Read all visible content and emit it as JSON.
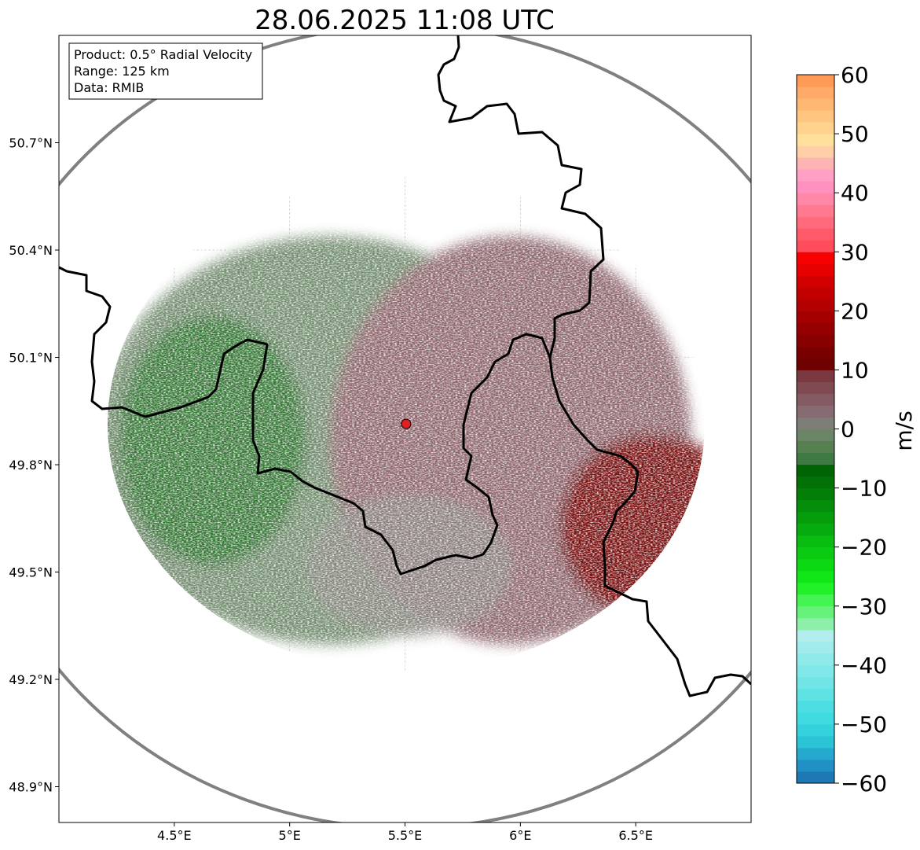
{
  "chart_data": {
    "type": "heatmap",
    "title": "28.06.2025 11:08 UTC",
    "info_box": [
      "Product: 0.5° Radial Velocity",
      "Range: 125 km",
      "Data: RMIB"
    ],
    "x_ticks": [
      {
        "value": 4.5,
        "label": "4.5°E"
      },
      {
        "value": 5.0,
        "label": "5°E"
      },
      {
        "value": 5.5,
        "label": "5.5°E"
      },
      {
        "value": 6.0,
        "label": "6°E"
      },
      {
        "value": 6.5,
        "label": "6.5°E"
      }
    ],
    "y_ticks": [
      {
        "value": 48.9,
        "label": "48.9°N"
      },
      {
        "value": 49.2,
        "label": "49.2°N"
      },
      {
        "value": 49.5,
        "label": "49.5°N"
      },
      {
        "value": 49.8,
        "label": "49.8°N"
      },
      {
        "value": 50.1,
        "label": "50.1°N"
      },
      {
        "value": 50.4,
        "label": "50.4°N"
      },
      {
        "value": 50.7,
        "label": "50.7°N"
      }
    ],
    "xlim": [
      4.0,
      7.0
    ],
    "ylim": [
      48.8,
      51.0
    ],
    "grid": true,
    "radar_site": {
      "lon": 5.505,
      "lat": 49.914
    },
    "range_km": 125,
    "colorbar": {
      "label": "m/s",
      "min": -60,
      "max": 60,
      "ticks": [
        -60,
        -50,
        -40,
        -30,
        -20,
        -10,
        0,
        10,
        20,
        30,
        40,
        50,
        60
      ],
      "tick_labels": [
        "−60",
        "−50",
        "−40",
        "−30",
        "−20",
        "−10",
        "0",
        "10",
        "20",
        "30",
        "40",
        "50",
        "60"
      ],
      "bands": [
        {
          "from": -60,
          "to": -58,
          "color": "#1f77b4"
        },
        {
          "from": -58,
          "to": -56,
          "color": "#2190c4"
        },
        {
          "from": -56,
          "to": -54,
          "color": "#25a9cf"
        },
        {
          "from": -54,
          "to": -52,
          "color": "#2bc3d6"
        },
        {
          "from": -52,
          "to": -50,
          "color": "#33d2dc"
        },
        {
          "from": -50,
          "to": -48,
          "color": "#3fdbe0"
        },
        {
          "from": -48,
          "to": -46,
          "color": "#4cdee2"
        },
        {
          "from": -46,
          "to": -44,
          "color": "#5ee2e4"
        },
        {
          "from": -44,
          "to": -42,
          "color": "#6fe5e6"
        },
        {
          "from": -42,
          "to": -40,
          "color": "#80e8e8"
        },
        {
          "from": -40,
          "to": -38,
          "color": "#90eaea"
        },
        {
          "from": -38,
          "to": -36,
          "color": "#a0ecec"
        },
        {
          "from": -36,
          "to": -34,
          "color": "#b2eeee"
        },
        {
          "from": -34,
          "to": -32,
          "color": "#8cf0a8"
        },
        {
          "from": -32,
          "to": -30,
          "color": "#66f27a"
        },
        {
          "from": -30,
          "to": -28,
          "color": "#44f452"
        },
        {
          "from": -28,
          "to": -26,
          "color": "#22f028"
        },
        {
          "from": -26,
          "to": -24,
          "color": "#10e618"
        },
        {
          "from": -24,
          "to": -22,
          "color": "#0cd914"
        },
        {
          "from": -22,
          "to": -20,
          "color": "#0acb12"
        },
        {
          "from": -20,
          "to": -18,
          "color": "#08bc10"
        },
        {
          "from": -18,
          "to": -16,
          "color": "#06ac0e"
        },
        {
          "from": -16,
          "to": -14,
          "color": "#059d0c"
        },
        {
          "from": -14,
          "to": -12,
          "color": "#048e0a"
        },
        {
          "from": -12,
          "to": -10,
          "color": "#037f08"
        },
        {
          "from": -10,
          "to": -8,
          "color": "#027106"
        },
        {
          "from": -8,
          "to": -6,
          "color": "#016404"
        },
        {
          "from": -6,
          "to": -4,
          "color": "#3f7a44"
        },
        {
          "from": -4,
          "to": -2,
          "color": "#56804f"
        },
        {
          "from": -2,
          "to": 0,
          "color": "#6b8566"
        },
        {
          "from": 0,
          "to": 2,
          "color": "#7f7d77"
        },
        {
          "from": 2,
          "to": 4,
          "color": "#886a72"
        },
        {
          "from": 4,
          "to": 6,
          "color": "#855b63"
        },
        {
          "from": 6,
          "to": 8,
          "color": "#7f4a52"
        },
        {
          "from": 8,
          "to": 10,
          "color": "#7a3840"
        },
        {
          "from": 10,
          "to": 12,
          "color": "#6e0000"
        },
        {
          "from": 12,
          "to": 14,
          "color": "#7a0000"
        },
        {
          "from": 14,
          "to": 16,
          "color": "#880000"
        },
        {
          "from": 16,
          "to": 18,
          "color": "#960000"
        },
        {
          "from": 18,
          "to": 20,
          "color": "#a40000"
        },
        {
          "from": 20,
          "to": 22,
          "color": "#b30000"
        },
        {
          "from": 22,
          "to": 24,
          "color": "#c20000"
        },
        {
          "from": 24,
          "to": 26,
          "color": "#d20000"
        },
        {
          "from": 26,
          "to": 28,
          "color": "#e60000"
        },
        {
          "from": 28,
          "to": 30,
          "color": "#f70000"
        },
        {
          "from": 30,
          "to": 32,
          "color": "#ff4c5a"
        },
        {
          "from": 32,
          "to": 34,
          "color": "#ff5a6a"
        },
        {
          "from": 34,
          "to": 36,
          "color": "#ff6a7c"
        },
        {
          "from": 36,
          "to": 38,
          "color": "#ff7a90"
        },
        {
          "from": 38,
          "to": 40,
          "color": "#ff88a8"
        },
        {
          "from": 40,
          "to": 42,
          "color": "#ff90c0"
        },
        {
          "from": 42,
          "to": 44,
          "color": "#ffa0c4"
        },
        {
          "from": 44,
          "to": 46,
          "color": "#ffb4b4"
        },
        {
          "from": 46,
          "to": 48,
          "color": "#ffd0a8"
        },
        {
          "from": 48,
          "to": 50,
          "color": "#ffe19c"
        },
        {
          "from": 50,
          "to": 52,
          "color": "#ffd38e"
        },
        {
          "from": 52,
          "to": 54,
          "color": "#ffc680"
        },
        {
          "from": 54,
          "to": 56,
          "color": "#ffb874"
        },
        {
          "from": 56,
          "to": 58,
          "color": "#ffaa68"
        },
        {
          "from": 58,
          "to": 60,
          "color": "#ff9a56"
        }
      ]
    },
    "velocity_field": [
      {
        "lon": 4.5,
        "lat": 49.9,
        "velocity": -9
      },
      {
        "lon": 5.0,
        "lat": 49.9,
        "velocity": -3
      },
      {
        "lon": 5.5,
        "lat": 49.9,
        "velocity": 0
      },
      {
        "lon": 6.0,
        "lat": 49.9,
        "velocity": 4
      },
      {
        "lon": 6.6,
        "lat": 49.7,
        "velocity": 11
      }
    ]
  }
}
